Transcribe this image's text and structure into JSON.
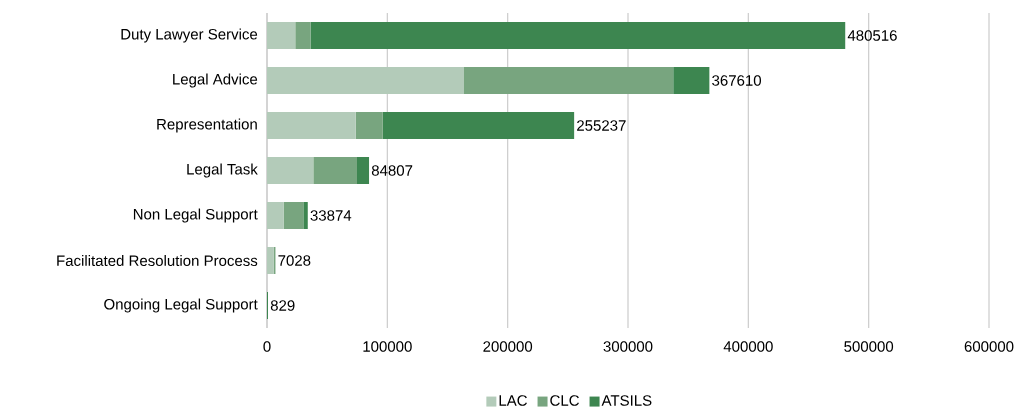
{
  "chart_data": {
    "type": "bar",
    "orientation": "horizontal",
    "stacked": true,
    "categories": [
      "Duty Lawyer Service",
      "Legal Advice",
      "Representation",
      "Legal Task",
      "Non Legal Support",
      "Facilitated Resolution Process",
      "Ongoing Legal Support"
    ],
    "series": [
      {
        "name": "LAC",
        "color": "#b3cbb9",
        "values": [
          23500,
          163700,
          73700,
          38500,
          14000,
          5700,
          0
        ]
      },
      {
        "name": "CLC",
        "color": "#78a57f",
        "values": [
          12700,
          173900,
          22500,
          36300,
          16200,
          1328,
          0
        ]
      },
      {
        "name": "ATSILS",
        "color": "#3d8650",
        "values": [
          444316,
          30010,
          159037,
          10007,
          3674,
          0,
          829
        ]
      }
    ],
    "totals": [
      "480516",
      "367610",
      "255237",
      "84807",
      "33874",
      "7028",
      "829"
    ],
    "xlim": [
      0,
      600000
    ],
    "xticks": [
      0,
      100000,
      200000,
      300000,
      400000,
      500000,
      600000
    ],
    "grid": "x",
    "legend": "bottom"
  }
}
